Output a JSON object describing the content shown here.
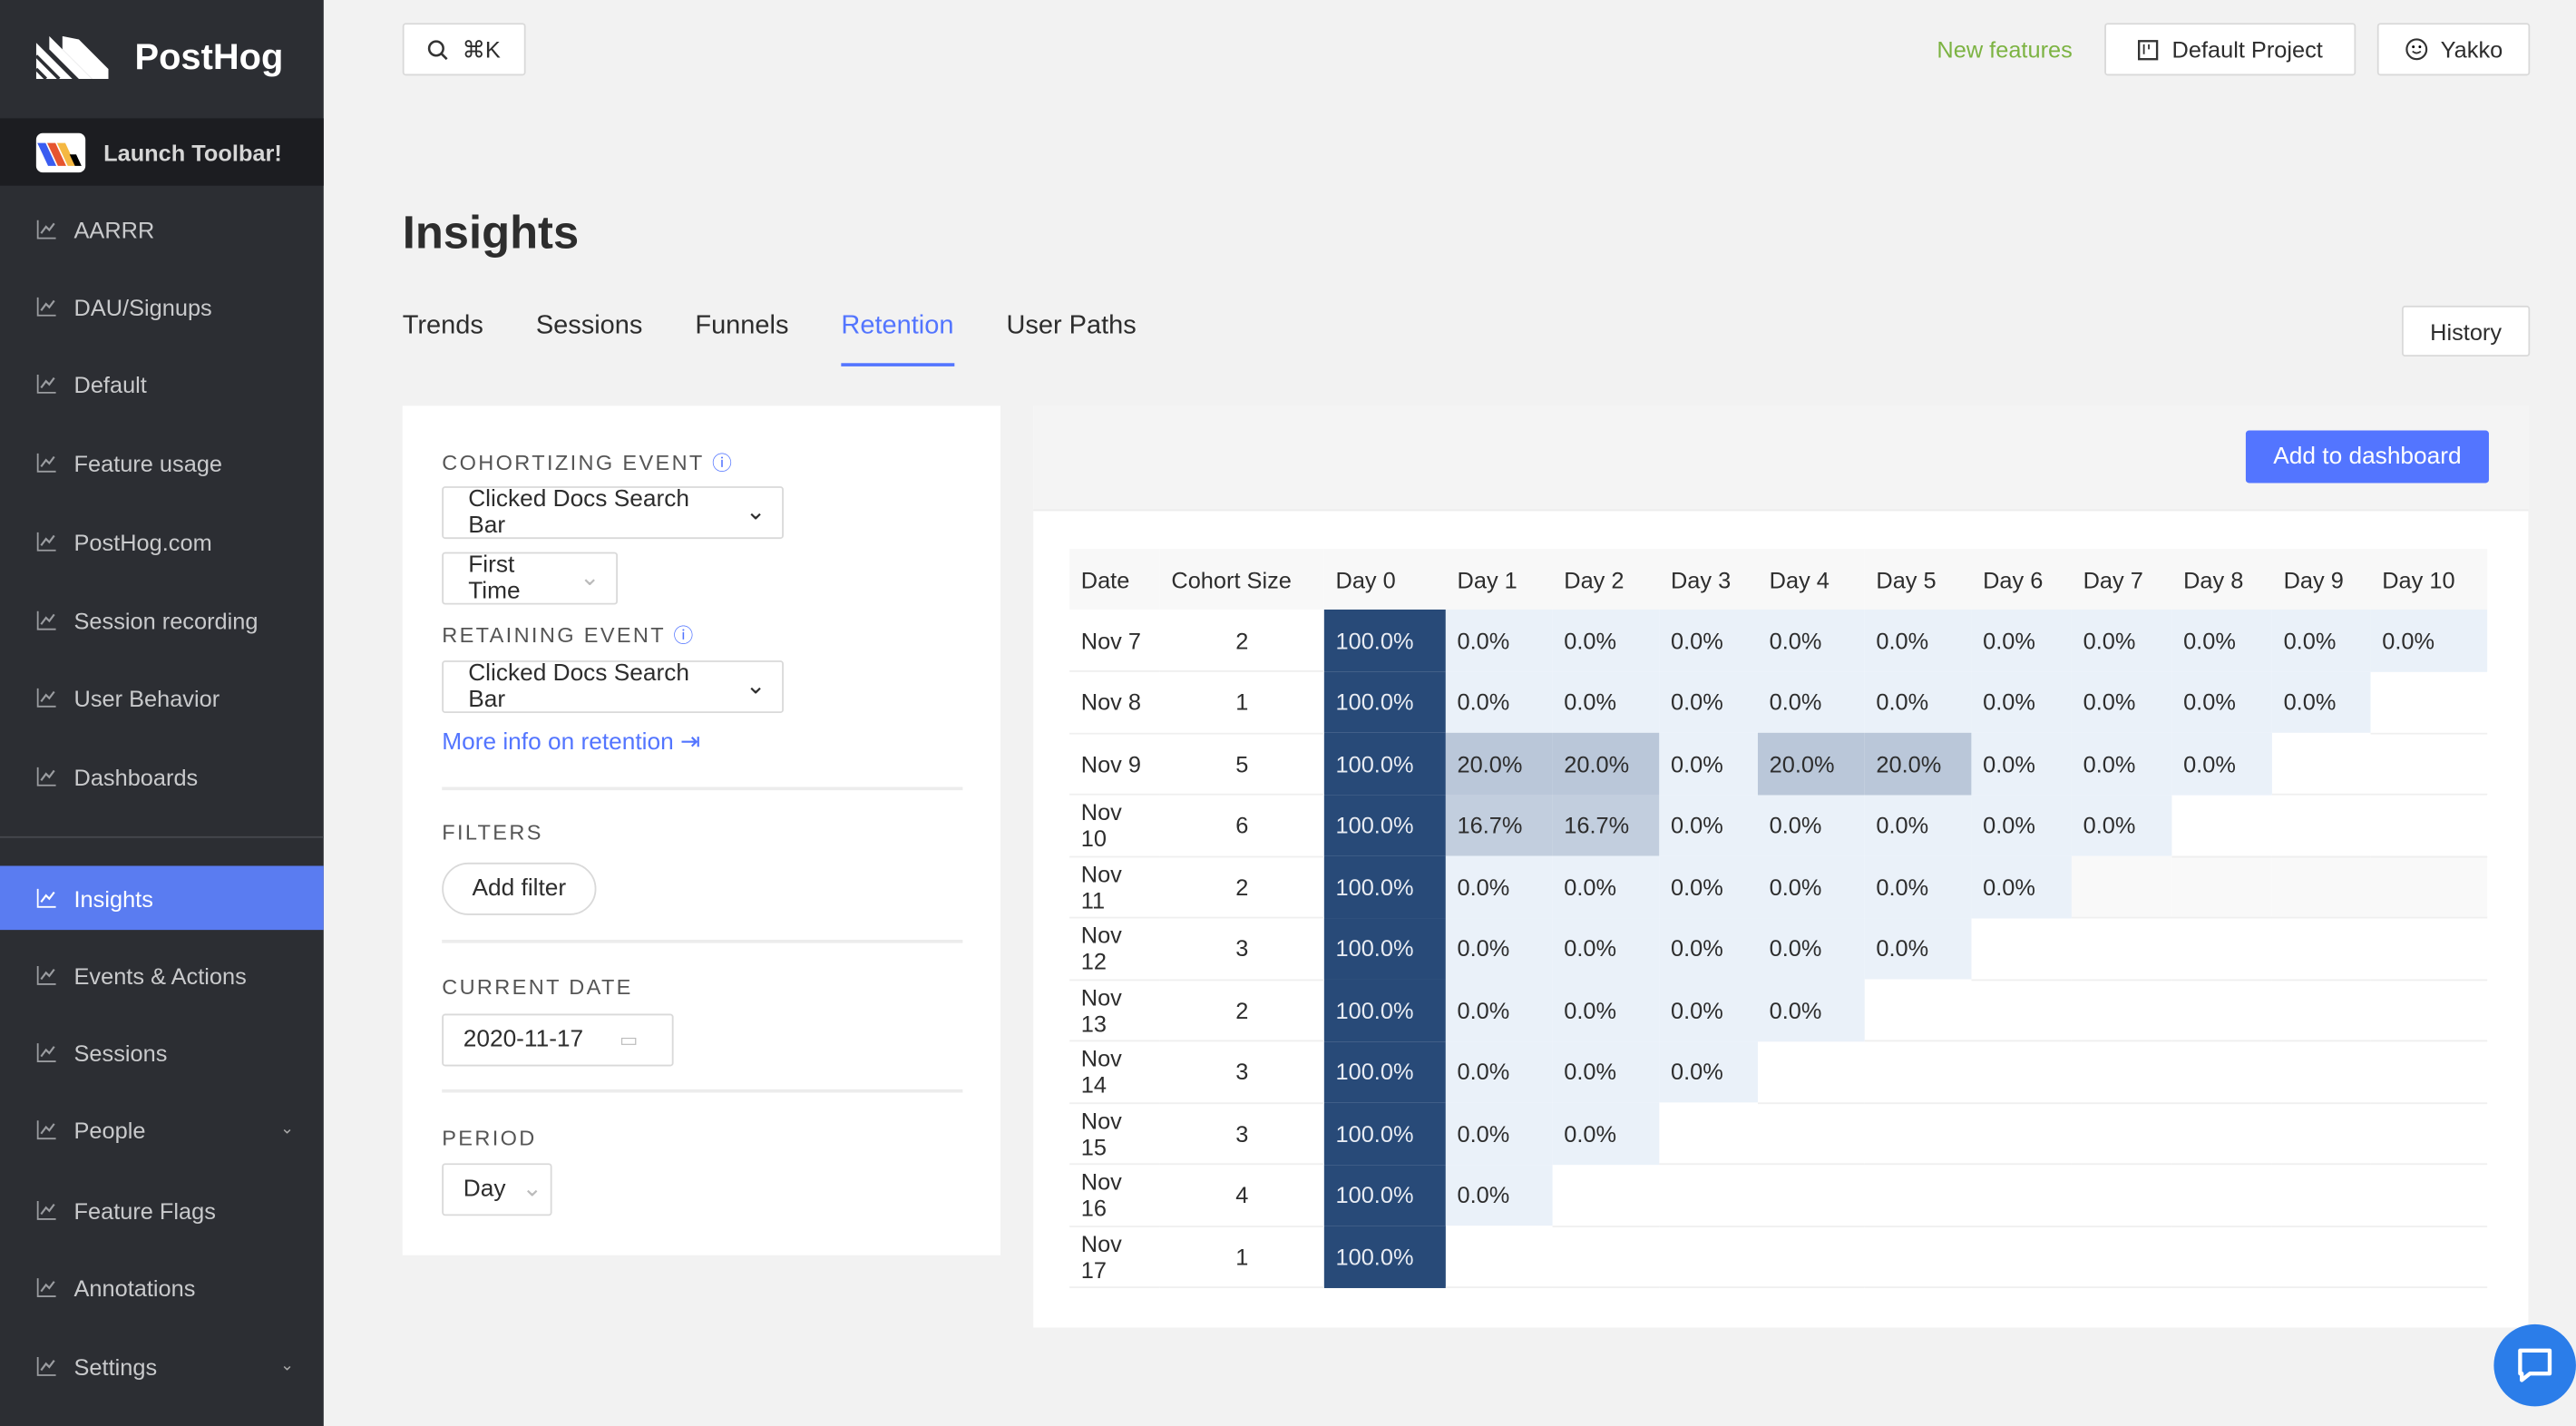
{
  "app": {
    "name": "PostHog",
    "launch_toolbar": "Launch Toolbar!"
  },
  "sidebar": {
    "items": [
      {
        "label": "AARRR",
        "icon": "chart-line-icon"
      },
      {
        "label": "DAU/Signups",
        "icon": "chart-line-icon"
      },
      {
        "label": "Default",
        "icon": "chart-line-icon"
      },
      {
        "label": "Feature usage",
        "icon": "chart-line-icon"
      },
      {
        "label": "PostHog.com",
        "icon": "chart-line-icon"
      },
      {
        "label": "Session recording",
        "icon": "chart-line-icon"
      },
      {
        "label": "User Behavior",
        "icon": "chart-line-icon"
      },
      {
        "label": "Dashboards",
        "icon": "dashboard-icon"
      },
      {
        "label": "Insights",
        "icon": "rise-icon",
        "active": true
      },
      {
        "label": "Events & Actions",
        "icon": "container-icon"
      },
      {
        "label": "Sessions",
        "icon": "clock-icon"
      },
      {
        "label": "People",
        "icon": "user-icon",
        "expandable": true
      },
      {
        "label": "Feature Flags",
        "icon": "flag-icon"
      },
      {
        "label": "Annotations",
        "icon": "message-icon"
      },
      {
        "label": "Settings",
        "icon": "project-icon",
        "expandable": true
      }
    ]
  },
  "topbar": {
    "search": "⌘K",
    "new_features": "New features",
    "project": "Default Project",
    "user": "Yakko"
  },
  "page": {
    "title": "Insights",
    "tabs": [
      "Trends",
      "Sessions",
      "Funnels",
      "Retention",
      "User Paths"
    ],
    "active_tab": "Retention",
    "history": "History"
  },
  "filters": {
    "cohortizing_label": "COHORTIZING EVENT",
    "cohortizing_event": "Clicked Docs Search Bar",
    "cohort_type": "First Time",
    "retaining_label": "RETAINING EVENT",
    "retaining_event": "Clicked Docs Search Bar",
    "more_info": "More info on retention",
    "filters_label": "FILTERS",
    "add_filter": "Add filter",
    "current_date_label": "CURRENT DATE",
    "current_date": "2020-11-17",
    "period_label": "PERIOD",
    "period": "Day"
  },
  "results": {
    "add_to_dashboard": "Add to dashboard",
    "headers": [
      "Date",
      "Cohort Size",
      "Day 0",
      "Day 1",
      "Day 2",
      "Day 3",
      "Day 4",
      "Day 5",
      "Day 6",
      "Day 7",
      "Day 8",
      "Day 9",
      "Day 10"
    ],
    "rows": [
      {
        "date": "Nov 7",
        "size": "2",
        "values": [
          "100.0%",
          "0.0%",
          "0.0%",
          "0.0%",
          "0.0%",
          "0.0%",
          "0.0%",
          "0.0%",
          "0.0%",
          "0.0%",
          "0.0%"
        ]
      },
      {
        "date": "Nov 8",
        "size": "1",
        "values": [
          "100.0%",
          "0.0%",
          "0.0%",
          "0.0%",
          "0.0%",
          "0.0%",
          "0.0%",
          "0.0%",
          "0.0%",
          "0.0%"
        ]
      },
      {
        "date": "Nov 9",
        "size": "5",
        "values": [
          "100.0%",
          "20.0%",
          "20.0%",
          "0.0%",
          "20.0%",
          "20.0%",
          "0.0%",
          "0.0%",
          "0.0%"
        ]
      },
      {
        "date": "Nov 10",
        "size": "6",
        "values": [
          "100.0%",
          "16.7%",
          "16.7%",
          "0.0%",
          "0.0%",
          "0.0%",
          "0.0%",
          "0.0%"
        ]
      },
      {
        "date": "Nov 11",
        "size": "2",
        "values": [
          "100.0%",
          "0.0%",
          "0.0%",
          "0.0%",
          "0.0%",
          "0.0%",
          "0.0%"
        ]
      },
      {
        "date": "Nov 12",
        "size": "3",
        "values": [
          "100.0%",
          "0.0%",
          "0.0%",
          "0.0%",
          "0.0%",
          "0.0%"
        ]
      },
      {
        "date": "Nov 13",
        "size": "2",
        "values": [
          "100.0%",
          "0.0%",
          "0.0%",
          "0.0%",
          "0.0%"
        ]
      },
      {
        "date": "Nov 14",
        "size": "3",
        "values": [
          "100.0%",
          "0.0%",
          "0.0%",
          "0.0%"
        ]
      },
      {
        "date": "Nov 15",
        "size": "3",
        "values": [
          "100.0%",
          "0.0%",
          "0.0%"
        ]
      },
      {
        "date": "Nov 16",
        "size": "4",
        "values": [
          "100.0%",
          "0.0%"
        ]
      },
      {
        "date": "Nov 17",
        "size": "1",
        "values": [
          "100.0%"
        ]
      }
    ]
  },
  "colors": {
    "accent": "#5375ff",
    "sidebar": "#2c2e33",
    "active_nav": "#5a7cf1",
    "retention_full": "#284a78",
    "retention_empty": "#eaf1f9",
    "new_features": "#7cb342"
  }
}
